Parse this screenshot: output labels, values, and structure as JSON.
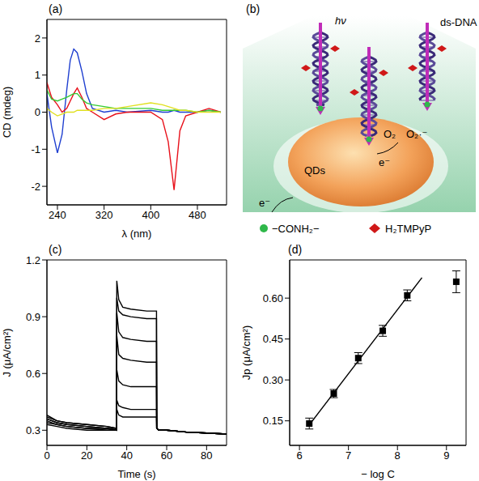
{
  "chart_data": [
    {
      "type": "line",
      "panel_label": "(a)",
      "x_label": "λ (nm)",
      "y_label": "CD (mdeg)",
      "xlim": [
        222,
        530
      ],
      "xticks": [
        240,
        320,
        400,
        480
      ],
      "ylim": [
        -2.5,
        2.5
      ],
      "yticks": [
        -2,
        -1,
        0,
        1,
        2
      ],
      "x": [
        222,
        230,
        240,
        248,
        256,
        262,
        268,
        274,
        282,
        290,
        300,
        320,
        340,
        360,
        400,
        420,
        430,
        440,
        450,
        460,
        480,
        500,
        520
      ],
      "series": [
        {
          "color": "#1f3fd0",
          "values": [
            0.5,
            -0.4,
            -1.1,
            -0.6,
            0.6,
            1.4,
            1.7,
            1.6,
            1.1,
            0.5,
            0.1,
            0.0,
            0.05,
            0.0,
            0.05,
            0.0,
            0.0,
            0.05,
            0.0,
            0.0,
            0.0,
            0.05,
            0.0
          ]
        },
        {
          "color": "#e8101a",
          "values": [
            0.8,
            0.4,
            0.2,
            0.0,
            0.1,
            0.3,
            0.5,
            0.65,
            0.4,
            0.1,
            0.0,
            -0.2,
            -0.05,
            0.0,
            0.0,
            -0.2,
            -0.8,
            -2.1,
            -0.5,
            -0.1,
            0.0,
            0.1,
            0.0
          ]
        },
        {
          "color": "#33cc33",
          "values": [
            0.6,
            0.35,
            0.3,
            0.35,
            0.4,
            0.45,
            0.5,
            0.5,
            0.35,
            0.25,
            0.2,
            0.15,
            0.1,
            0.1,
            0.1,
            0.05,
            0.05,
            0.05,
            0.05,
            0.05,
            0.0,
            0.05,
            0.0
          ]
        },
        {
          "color": "#e0e020",
          "values": [
            0.1,
            0.0,
            -0.1,
            -0.05,
            0.0,
            0.0,
            0.0,
            0.05,
            0.05,
            0.05,
            0.05,
            0.1,
            0.1,
            0.15,
            0.25,
            0.2,
            0.15,
            0.1,
            0.05,
            0.05,
            0.0,
            0.0,
            0.0
          ]
        }
      ]
    },
    {
      "type": "diagram",
      "panel_label": "(b)",
      "labels": {
        "light": "hν",
        "dna": "ds-DNA",
        "qd": "QDs",
        "electron": "e⁻",
        "oxygen": "O₂",
        "superoxide": "O₂·⁻",
        "linker": "−CONH₂−",
        "porphyrin": "H₂TMPyP"
      }
    },
    {
      "type": "line",
      "panel_label": "(c)",
      "x_label": "Time (s)",
      "y_label": "J (μA/cm²)",
      "xlim": [
        0,
        90
      ],
      "xticks": [
        0,
        20,
        40,
        60,
        80
      ],
      "ylim": [
        0.22,
        1.2
      ],
      "yticks": [
        0.3,
        0.6,
        0.9,
        1.2
      ],
      "x": [
        0,
        5,
        10,
        20,
        30,
        34.9,
        35,
        36,
        38,
        42,
        50,
        54.9,
        55,
        56,
        60,
        70,
        80,
        90
      ],
      "series": [
        {
          "color": "#000000",
          "values": [
            0.38,
            0.35,
            0.34,
            0.33,
            0.32,
            0.31,
            1.09,
            0.99,
            0.95,
            0.94,
            0.93,
            0.93,
            0.31,
            0.3,
            0.3,
            0.29,
            0.285,
            0.28
          ]
        },
        {
          "color": "#000000",
          "values": [
            0.37,
            0.35,
            0.34,
            0.33,
            0.32,
            0.31,
            1.0,
            0.93,
            0.91,
            0.9,
            0.89,
            0.89,
            0.31,
            0.3,
            0.3,
            0.29,
            0.285,
            0.28
          ]
        },
        {
          "color": "#000000",
          "values": [
            0.36,
            0.34,
            0.33,
            0.32,
            0.31,
            0.31,
            0.92,
            0.82,
            0.79,
            0.78,
            0.77,
            0.77,
            0.31,
            0.3,
            0.3,
            0.29,
            0.285,
            0.28
          ]
        },
        {
          "color": "#000000",
          "values": [
            0.36,
            0.34,
            0.33,
            0.32,
            0.31,
            0.3,
            0.8,
            0.7,
            0.68,
            0.67,
            0.66,
            0.66,
            0.31,
            0.3,
            0.3,
            0.29,
            0.285,
            0.28
          ]
        },
        {
          "color": "#000000",
          "values": [
            0.35,
            0.33,
            0.32,
            0.31,
            0.31,
            0.3,
            0.62,
            0.56,
            0.54,
            0.53,
            0.53,
            0.53,
            0.31,
            0.3,
            0.3,
            0.29,
            0.285,
            0.28
          ]
        },
        {
          "color": "#000000",
          "values": [
            0.34,
            0.33,
            0.32,
            0.31,
            0.3,
            0.3,
            0.46,
            0.43,
            0.42,
            0.41,
            0.41,
            0.41,
            0.31,
            0.3,
            0.3,
            0.29,
            0.285,
            0.28
          ]
        },
        {
          "color": "#000000",
          "values": [
            0.33,
            0.32,
            0.31,
            0.3,
            0.3,
            0.3,
            0.41,
            0.38,
            0.37,
            0.37,
            0.37,
            0.37,
            0.31,
            0.3,
            0.3,
            0.29,
            0.285,
            0.28
          ]
        }
      ]
    },
    {
      "type": "scatter",
      "panel_label": "(d)",
      "x_label": "− log C",
      "y_label": "Jp (μA/cm²)",
      "xlim": [
        5.8,
        9.4
      ],
      "xticks": [
        6,
        7,
        8,
        9
      ],
      "ylim": [
        0.06,
        0.74
      ],
      "yticks": [
        0.15,
        {
          "value": 0.3,
          "label": "0.30"
        },
        0.45,
        {
          "value": 0.6,
          "label": "0.60"
        }
      ],
      "series": [
        {
          "type": "scatter",
          "color": "#000000",
          "marker": "square",
          "x": [
            6.2,
            6.7,
            7.2,
            7.7,
            8.2,
            9.2
          ],
          "values": [
            0.14,
            0.25,
            0.38,
            0.48,
            0.61,
            0.66
          ],
          "errors": [
            0.02,
            0.015,
            0.02,
            0.02,
            0.02,
            0.04
          ]
        },
        {
          "type": "line",
          "color": "#000000",
          "x": [
            6.2,
            8.5
          ],
          "values": [
            0.135,
            0.675
          ]
        }
      ]
    }
  ]
}
